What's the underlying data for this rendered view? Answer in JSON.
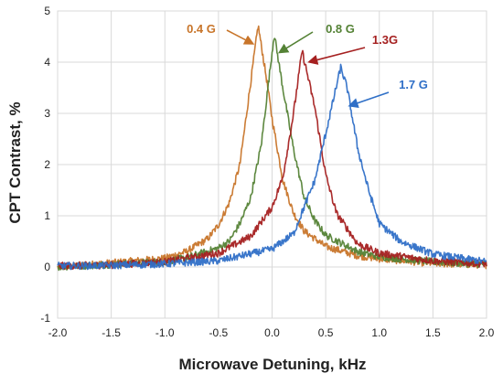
{
  "chart_data": {
    "type": "line",
    "title": "",
    "xlabel": "Microwave Detuning, kHz",
    "ylabel": "CPT Contrast, %",
    "xlim": [
      -2.0,
      2.0
    ],
    "ylim": [
      -1,
      5
    ],
    "xticks": [
      "-2.0",
      "-1.5",
      "-1.0",
      "-0.5",
      "0.0",
      "0.5",
      "1.0",
      "1.5",
      "2.0"
    ],
    "yticks": [
      "-1",
      "0",
      "1",
      "2",
      "3",
      "4",
      "5"
    ],
    "grid": true,
    "series": [
      {
        "name": "0.4 G",
        "color": "#C8752A",
        "peak_x": -0.13,
        "peak_y": 4.72,
        "half_width_khz": 0.16,
        "x": [
          -2.0,
          -1.5,
          -1.0,
          -0.8,
          -0.6,
          -0.5,
          -0.4,
          -0.3,
          -0.2,
          -0.13,
          -0.05,
          0.0,
          0.1,
          0.2,
          0.3,
          0.5,
          0.8,
          1.0,
          1.5,
          2.0
        ],
        "y": [
          0.0,
          0.08,
          0.17,
          0.3,
          0.55,
          0.82,
          1.25,
          2.0,
          3.6,
          4.72,
          3.65,
          2.9,
          1.7,
          1.05,
          0.7,
          0.4,
          0.22,
          0.16,
          0.07,
          0.04
        ]
      },
      {
        "name": "0.8 G",
        "color": "#548235",
        "peak_x": 0.02,
        "peak_y": 4.55,
        "half_width_khz": 0.17,
        "x": [
          -2.0,
          -1.5,
          -1.0,
          -0.8,
          -0.5,
          -0.4,
          -0.3,
          -0.2,
          -0.1,
          0.02,
          0.1,
          0.2,
          0.3,
          0.4,
          0.5,
          0.8,
          1.0,
          1.5,
          2.0
        ],
        "y": [
          0.0,
          0.05,
          0.1,
          0.18,
          0.37,
          0.5,
          0.85,
          1.35,
          2.4,
          4.55,
          3.5,
          2.3,
          1.35,
          0.9,
          0.62,
          0.3,
          0.2,
          0.1,
          0.05
        ]
      },
      {
        "name": "1.3G",
        "color": "#A52020",
        "peak_x": 0.28,
        "peak_y": 4.22,
        "half_width_khz": 0.19,
        "x": [
          -2.0,
          -1.5,
          -1.0,
          -0.5,
          -0.2,
          0.0,
          0.1,
          0.2,
          0.28,
          0.4,
          0.5,
          0.6,
          0.8,
          1.0,
          1.5,
          2.0
        ],
        "y": [
          0.02,
          0.04,
          0.1,
          0.27,
          0.6,
          1.17,
          1.75,
          3.0,
          4.22,
          3.1,
          1.8,
          1.05,
          0.45,
          0.27,
          0.12,
          0.06
        ]
      },
      {
        "name": "1.7 G",
        "color": "#2F6FC7",
        "peak_x": 0.64,
        "peak_y": 3.9,
        "half_width_khz": 0.2,
        "x": [
          -2.0,
          -1.5,
          -1.0,
          -0.5,
          0.0,
          0.2,
          0.4,
          0.5,
          0.64,
          0.7,
          0.8,
          0.9,
          1.0,
          1.2,
          1.5,
          2.0
        ],
        "y": [
          0.02,
          0.03,
          0.06,
          0.12,
          0.35,
          0.65,
          1.7,
          2.6,
          3.9,
          3.5,
          2.3,
          1.5,
          0.85,
          0.5,
          0.25,
          0.1
        ]
      }
    ],
    "annotations": [
      {
        "text": "0.4 G",
        "series": 0
      },
      {
        "text": "0.8 G",
        "series": 1
      },
      {
        "text": "1.3G",
        "series": 2
      },
      {
        "text": "1.7 G",
        "series": 3
      }
    ]
  }
}
